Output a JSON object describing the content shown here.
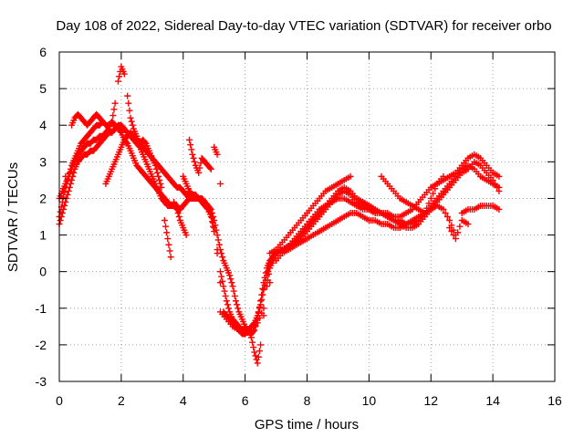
{
  "chart_data": {
    "type": "scatter",
    "title": "Day 108 of 2022, Sidereal Day-to-day VTEC variation (SDTVAR) for receiver orbo",
    "xlabel": "GPS time / hours",
    "ylabel": "SDTVAR / TECUs",
    "xlim": [
      0,
      16
    ],
    "ylim": [
      -3,
      6
    ],
    "xticks": [
      0,
      2,
      4,
      6,
      8,
      10,
      12,
      14,
      16
    ],
    "xtick_labels": [
      "0",
      "2",
      "4",
      "6",
      "8",
      "10",
      "12",
      "14",
      "16"
    ],
    "yticks": [
      -3,
      -2,
      -1,
      0,
      1,
      2,
      3,
      4,
      5,
      6
    ],
    "ytick_labels": [
      "-3",
      "-2",
      "-1",
      "0",
      "1",
      "2",
      "3",
      "4",
      "5",
      "6"
    ],
    "grid": true,
    "marker": "plus",
    "color": "#ff0000",
    "series": [
      {
        "x": [
          0.0,
          0.1,
          0.2,
          0.3,
          0.4,
          0.5,
          0.6,
          0.7,
          0.8,
          0.9,
          1.0,
          1.1,
          1.2,
          1.3,
          1.4,
          1.5,
          1.6,
          1.7,
          1.8,
          1.9,
          2.0,
          2.1,
          2.2,
          2.3,
          2.4,
          2.5,
          2.6,
          2.7,
          2.8,
          2.9,
          3.0,
          3.1,
          3.2,
          3.3,
          3.4,
          3.5,
          3.6,
          3.7,
          3.8,
          3.9,
          4.0,
          4.1,
          4.2,
          4.3,
          4.4,
          4.5,
          4.6,
          4.7,
          4.8,
          4.9,
          5.0,
          5.1,
          5.2,
          5.3,
          5.4,
          5.5,
          5.6,
          5.7,
          5.8,
          5.9,
          6.0,
          6.1,
          6.2,
          6.3,
          6.4,
          6.5,
          6.6,
          6.7,
          6.8,
          6.9,
          7.0,
          7.2,
          7.4,
          7.6,
          7.8,
          8.0,
          8.2,
          8.4,
          8.6,
          8.8,
          9.0,
          9.2,
          9.4,
          9.6,
          9.8,
          10.0,
          10.2,
          10.4,
          10.6,
          10.8,
          11.0,
          11.2,
          11.4,
          11.6,
          11.8,
          12.0,
          12.2,
          12.4,
          12.6,
          12.8,
          13.0,
          13.2,
          13.4,
          13.6,
          13.8,
          14.0,
          14.2
        ],
        "y": [
          1.5,
          1.9,
          2.3,
          2.6,
          2.9,
          3.1,
          3.3,
          3.5,
          3.6,
          3.7,
          3.8,
          3.9,
          4.0,
          4.0,
          4.1,
          4.0,
          4.0,
          4.1,
          4.0,
          3.9,
          3.8,
          3.6,
          3.5,
          3.3,
          3.1,
          2.9,
          2.8,
          2.7,
          2.6,
          2.5,
          2.4,
          2.3,
          2.2,
          2.1,
          2.0,
          1.9,
          1.8,
          1.8,
          1.7,
          1.7,
          1.8,
          1.9,
          2.0,
          2.1,
          2.1,
          2.0,
          2.0,
          1.9,
          1.8,
          1.7,
          1.4,
          1.0,
          0.6,
          0.3,
          0.1,
          -0.1,
          -0.4,
          -0.8,
          -1.1,
          -1.3,
          -1.5,
          -1.6,
          -1.7,
          -1.6,
          -1.3,
          -0.8,
          -0.3,
          0.1,
          0.3,
          0.4,
          0.5,
          0.6,
          0.7,
          0.8,
          1.0,
          1.2,
          1.4,
          1.6,
          1.8,
          2.0,
          2.2,
          2.3,
          2.2,
          2.0,
          1.9,
          1.8,
          1.7,
          1.6,
          1.5,
          1.4,
          1.4,
          1.3,
          1.3,
          1.4,
          1.6,
          1.8,
          2.0,
          2.2,
          2.4,
          2.6,
          2.8,
          2.9,
          2.8,
          2.6,
          2.5,
          2.4,
          2.3
        ]
      },
      {
        "x": [
          0.0,
          0.1,
          0.2,
          0.3,
          0.4,
          0.5,
          0.6,
          0.7,
          0.8,
          0.9,
          1.0,
          1.1,
          1.2,
          1.3,
          1.4,
          1.5,
          1.6,
          1.7,
          1.8,
          1.9,
          2.0,
          2.1,
          2.2,
          2.3,
          2.4,
          2.5,
          2.6,
          2.7,
          2.8,
          2.9,
          3.0,
          3.1,
          3.2,
          3.3,
          3.4,
          3.5,
          3.6,
          3.7,
          3.8,
          3.9,
          4.0,
          4.1,
          4.2,
          4.3,
          4.4,
          4.5,
          4.6,
          4.7,
          4.8,
          4.9,
          5.0,
          5.1,
          5.2,
          5.3,
          5.4,
          5.5,
          5.6,
          5.7,
          5.8,
          5.9,
          6.0,
          6.1,
          6.2,
          6.3,
          6.4,
          6.5,
          6.6,
          6.7,
          6.8,
          6.9,
          7.0,
          7.2,
          7.4,
          7.6,
          7.8,
          8.0,
          8.2,
          8.4,
          8.6,
          8.8,
          9.0,
          9.2,
          9.4,
          9.6,
          9.8,
          10.0,
          10.2,
          10.4,
          10.6,
          10.8,
          11.0,
          11.2,
          11.4,
          11.6,
          11.8,
          12.0,
          12.2,
          12.4,
          12.6,
          12.8,
          13.0,
          13.2,
          13.4,
          13.6,
          13.8,
          14.0,
          14.2
        ],
        "y": [
          2.0,
          2.2,
          2.4,
          2.6,
          2.8,
          3.0,
          3.2,
          3.3,
          3.4,
          3.5,
          3.5,
          3.6,
          3.6,
          3.7,
          3.7,
          3.8,
          3.9,
          4.1,
          4.6,
          5.2,
          5.6,
          5.4,
          4.8,
          4.2,
          3.9,
          3.7,
          3.5,
          3.4,
          3.3,
          3.2,
          3.1,
          3.0,
          2.9,
          2.8,
          2.7,
          2.6,
          2.5,
          2.4,
          2.3,
          2.3,
          2.2,
          2.1,
          2.0,
          2.0,
          2.0,
          2.0,
          2.0,
          1.9,
          1.8,
          1.6,
          1.2,
          0.6,
          0.0,
          -0.4,
          -0.8,
          -1.1,
          -1.3,
          -1.4,
          -1.5,
          -1.6,
          -1.6,
          -1.6,
          -1.8,
          -2.2,
          -2.5,
          -2.0,
          -1.2,
          -0.4,
          0.1,
          0.3,
          0.5,
          0.6,
          0.7,
          0.9,
          1.1,
          1.3,
          1.5,
          1.7,
          1.8,
          1.9,
          2.0,
          2.0,
          1.9,
          1.8,
          1.7,
          1.7,
          1.6,
          1.6,
          1.6,
          1.5,
          1.5,
          1.6,
          1.7,
          1.9,
          2.1,
          2.3,
          2.4,
          2.5,
          2.6,
          2.7,
          2.9,
          3.1,
          3.2,
          3.1,
          2.9,
          2.7,
          2.6
        ]
      },
      {
        "x": [
          0.0,
          0.1,
          0.2,
          0.3,
          0.4,
          0.5,
          0.6,
          0.7,
          0.8,
          0.9,
          1.0,
          1.1,
          1.2,
          1.3,
          1.4,
          1.5,
          1.6,
          1.7,
          1.8,
          1.9,
          2.0,
          2.1,
          2.2,
          2.3,
          2.4,
          2.5,
          2.6,
          2.7,
          2.8,
          2.9,
          3.0,
          3.1,
          3.2,
          3.3,
          3.4,
          3.5,
          3.6,
          3.7,
          3.8,
          3.9,
          4.0,
          4.1,
          4.2,
          4.3,
          4.4,
          4.5,
          4.6,
          4.7,
          4.8,
          4.9,
          5.0,
          5.1,
          5.2,
          5.3,
          5.4,
          5.5,
          5.6,
          5.7,
          5.8,
          5.9,
          6.0,
          6.1,
          6.2,
          6.3,
          6.4,
          6.5,
          6.6,
          6.7,
          6.8,
          6.9,
          7.0,
          7.2,
          7.4,
          7.6,
          7.8,
          8.0,
          8.2,
          8.4,
          8.6,
          8.8,
          9.0,
          9.2,
          9.4,
          9.6,
          9.8,
          10.0,
          10.2,
          10.4,
          10.6,
          10.8,
          11.0,
          11.2,
          11.4,
          11.6,
          11.8,
          12.0,
          12.2,
          12.4,
          12.6,
          12.8,
          13.0,
          13.2,
          13.4,
          13.6,
          13.8,
          14.0,
          14.2
        ],
        "y": [
          1.3,
          1.6,
          1.9,
          2.2,
          2.5,
          2.8,
          3.0,
          3.1,
          3.2,
          3.2,
          3.3,
          3.3,
          3.4,
          3.5,
          3.6,
          3.7,
          3.8,
          3.8,
          3.9,
          4.0,
          4.0,
          3.9,
          3.8,
          3.7,
          3.6,
          3.5,
          3.4,
          3.2,
          3.0,
          2.8,
          2.6,
          2.4,
          2.2,
          2.0,
          1.9,
          1.8,
          1.8,
          1.8,
          1.8,
          1.7,
          2.6,
          2.4,
          2.2,
          2.1,
          2.0,
          2.0,
          1.9,
          1.8,
          1.7,
          1.5,
          1.1,
          0.5,
          -0.3,
          -1.1,
          -1.2,
          -1.3,
          -1.4,
          -1.5,
          -1.6,
          -1.7,
          -1.7,
          -1.6,
          -1.5,
          -1.4,
          -1.2,
          -0.9,
          -0.5,
          -0.1,
          0.2,
          0.4,
          0.5,
          0.6,
          0.7,
          0.8,
          0.9,
          1.1,
          1.3,
          1.5,
          1.7,
          1.9,
          2.1,
          2.2,
          2.1,
          1.9,
          1.8,
          1.7,
          1.6,
          1.6,
          1.5,
          1.4,
          1.3,
          1.2,
          1.2,
          1.3,
          1.5,
          1.7,
          1.9,
          2.1,
          2.3,
          2.5,
          2.7,
          2.8,
          3.0,
          2.9,
          2.7,
          2.5,
          2.2
        ]
      },
      {
        "x": [
          5.2,
          5.4,
          5.6,
          5.8,
          6.0,
          6.2,
          6.4,
          6.6,
          6.8,
          7.0,
          7.2,
          7.4,
          7.6,
          7.8,
          8.0,
          8.2,
          8.4,
          8.6,
          8.8,
          9.0,
          9.2,
          9.4,
          9.6,
          9.8,
          10.0,
          10.2,
          10.4,
          10.6,
          10.8,
          11.0,
          11.2,
          11.4,
          11.6,
          11.8,
          12.0,
          12.2,
          12.4,
          12.6,
          12.8,
          13.0,
          13.2,
          13.4,
          13.6,
          13.8,
          14.0,
          14.2
        ],
        "y": [
          -1.1,
          -1.3,
          -1.5,
          -1.6,
          -1.7,
          -1.6,
          -1.4,
          -1.0,
          -0.3,
          0.3,
          0.5,
          0.6,
          0.7,
          0.8,
          0.9,
          1.0,
          1.1,
          1.2,
          1.3,
          1.4,
          1.5,
          1.6,
          1.6,
          1.5,
          1.4,
          1.4,
          1.3,
          1.3,
          1.2,
          1.2,
          1.3,
          1.4,
          1.5,
          1.6,
          1.7,
          1.8,
          1.7,
          1.4,
          1.0,
          1.6,
          1.7,
          1.7,
          1.8,
          1.8,
          1.8,
          1.7
        ]
      },
      {
        "x": [
          0.2,
          0.4,
          0.5,
          0.6,
          0.7,
          0.8,
          0.9,
          1.0,
          1.1,
          1.2,
          1.3,
          1.4,
          1.5,
          1.6,
          1.7,
          1.8,
          1.9,
          2.0,
          2.1,
          2.2,
          2.3,
          2.4,
          2.5,
          2.6,
          2.7,
          2.8,
          2.9,
          3.0,
          3.1,
          3.2,
          3.3,
          3.4,
          3.5,
          3.6,
          3.7,
          3.8,
          3.9,
          4.0,
          4.1,
          4.2,
          4.3,
          4.4,
          4.5,
          4.6,
          4.7,
          4.8,
          4.9,
          5.0,
          5.1,
          5.2
        ],
        "y": [
          2.6,
          4.0,
          4.2,
          4.3,
          4.2,
          4.1,
          4.0,
          4.1,
          4.2,
          4.3,
          4.2,
          4.1,
          2.4,
          2.6,
          2.8,
          3.0,
          3.2,
          3.4,
          3.6,
          3.7,
          3.8,
          3.7,
          3.6,
          3.5,
          3.6,
          3.5,
          3.3,
          3.1,
          2.9,
          2.6,
          2.3,
          1.4,
          0.9,
          0.4,
          1.9,
          1.7,
          1.4,
          1.2,
          1.0,
          3.6,
          3.2,
          2.9,
          2.7,
          3.1,
          3.0,
          2.9,
          2.8,
          3.4,
          3.2,
          2.4
        ]
      },
      {
        "x": [
          6.8,
          7.0,
          7.2,
          7.4,
          7.6,
          7.8,
          8.0,
          8.2,
          8.4,
          8.6,
          8.8,
          9.0,
          9.2,
          9.4,
          9.6,
          9.8,
          10.0,
          10.2,
          10.4,
          10.6,
          10.8,
          11.0,
          11.2,
          11.4,
          11.6,
          11.8,
          12.0,
          12.2,
          12.4,
          12.6,
          12.8,
          13.0,
          13.2
        ],
        "y": [
          0.5,
          0.6,
          0.8,
          1.0,
          1.2,
          1.4,
          1.6,
          1.8,
          2.0,
          2.2,
          2.3,
          2.4,
          2.5,
          2.6,
          2.0,
          1.9,
          1.8,
          1.7,
          2.6,
          2.4,
          2.2,
          2.0,
          1.9,
          1.8,
          1.7,
          1.6,
          2.0,
          2.4,
          2.6,
          1.2,
          0.9,
          1.4,
          1.3
        ]
      }
    ]
  }
}
